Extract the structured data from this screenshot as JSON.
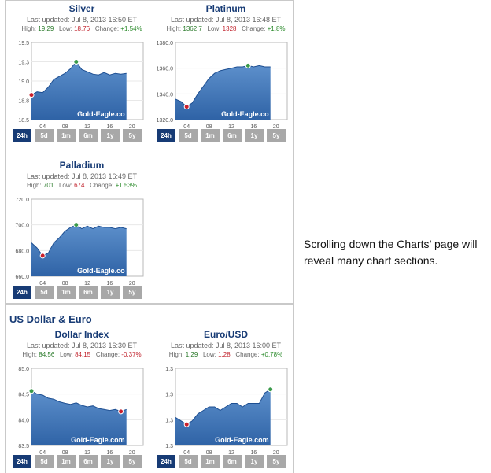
{
  "widgets": [
    {
      "id": "silver",
      "title": "Silver",
      "updated": "Last updated: Jul 8, 2013 16:50 ET",
      "high_label": "High:",
      "high": "19.29",
      "low_label": "Low:",
      "low": "18.76",
      "change_label": "Change:",
      "change": "+1.54%",
      "change_sign": "pos",
      "watermark": "Gold-Eagle.co",
      "y_ticks": [
        "19.5",
        "19.3",
        "19.0",
        "18.8",
        "18.5"
      ],
      "x_ticks": [
        "04",
        "08",
        "12",
        "16",
        "20"
      ],
      "chart_data": {
        "type": "area",
        "x": [
          0,
          1,
          2,
          3,
          4,
          5,
          6,
          7,
          8,
          9,
          10,
          11,
          12,
          13,
          14,
          15,
          16,
          17
        ],
        "y": [
          18.82,
          18.86,
          18.85,
          18.92,
          19.02,
          19.06,
          19.1,
          19.16,
          19.25,
          19.15,
          19.12,
          19.09,
          19.08,
          19.11,
          19.08,
          19.1,
          19.09,
          19.1
        ],
        "ylim": [
          18.5,
          19.5
        ],
        "xlim": [
          0,
          20
        ],
        "high": 19.29,
        "low": 18.76
      }
    },
    {
      "id": "platinum",
      "title": "Platinum",
      "updated": "Last updated: Jul 8, 2013 16:48 ET",
      "high_label": "High:",
      "high": "1362.7",
      "low_label": "Low:",
      "low": "1328",
      "change_label": "Change:",
      "change": "+1.8%",
      "change_sign": "pos",
      "watermark": "Gold-Eagle.co",
      "y_ticks": [
        "1380.0",
        "1360.0",
        "1340.0",
        "1320.0"
      ],
      "x_ticks": [
        "04",
        "08",
        "12",
        "16",
        "20"
      ],
      "chart_data": {
        "type": "area",
        "x": [
          0,
          1,
          2,
          3,
          4,
          5,
          6,
          7,
          8,
          9,
          10,
          11,
          12,
          13,
          14,
          15,
          16,
          17
        ],
        "y": [
          1336,
          1334,
          1330,
          1333,
          1340,
          1346,
          1352,
          1356,
          1358,
          1359,
          1360,
          1361,
          1361,
          1362,
          1361,
          1362,
          1361,
          1361
        ],
        "ylim": [
          1320,
          1380
        ],
        "xlim": [
          0,
          20
        ],
        "high": 1362.7,
        "low": 1328
      }
    },
    {
      "id": "palladium",
      "title": "Palladium",
      "updated": "Last updated: Jul 8, 2013 16:49 ET",
      "high_label": "High:",
      "high": "701",
      "low_label": "Low:",
      "low": "674",
      "change_label": "Change:",
      "change": "+1.53%",
      "change_sign": "pos",
      "watermark": "Gold-Eagle.co",
      "y_ticks": [
        "720.0",
        "700.0",
        "680.0",
        "660.0"
      ],
      "x_ticks": [
        "04",
        "08",
        "12",
        "16",
        "20"
      ],
      "chart_data": {
        "type": "area",
        "x": [
          0,
          1,
          2,
          3,
          4,
          5,
          6,
          7,
          8,
          9,
          10,
          11,
          12,
          13,
          14,
          15,
          16,
          17
        ],
        "y": [
          686,
          682,
          676,
          678,
          686,
          690,
          695,
          698,
          700,
          697,
          699,
          697,
          699,
          698,
          698,
          697,
          698,
          697
        ],
        "ylim": [
          660,
          720
        ],
        "xlim": [
          0,
          20
        ],
        "high": 701,
        "low": 674
      }
    },
    {
      "id": "dollar-index",
      "title": "Dollar Index",
      "updated": "Last updated: Jul 8, 2013 16:30 ET",
      "high_label": "High:",
      "high": "84.56",
      "low_label": "Low:",
      "low": "84.15",
      "change_label": "Change:",
      "change": "-0.37%",
      "change_sign": "neg",
      "watermark": "Gold-Eagle.com",
      "y_ticks": [
        "85.0",
        "84.5",
        "84.0",
        "83.5"
      ],
      "x_ticks": [
        "04",
        "08",
        "12",
        "16",
        "20"
      ],
      "chart_data": {
        "type": "area",
        "x": [
          0,
          1,
          2,
          3,
          4,
          5,
          6,
          7,
          8,
          9,
          10,
          11,
          12,
          13,
          14,
          15,
          16,
          17
        ],
        "y": [
          84.56,
          84.5,
          84.48,
          84.42,
          84.4,
          84.35,
          84.32,
          84.3,
          84.33,
          84.28,
          84.25,
          84.27,
          84.22,
          84.2,
          84.18,
          84.2,
          84.16,
          84.2
        ],
        "ylim": [
          83.5,
          85.0
        ],
        "xlim": [
          0,
          20
        ],
        "high": 84.56,
        "low": 84.15
      }
    },
    {
      "id": "euro-usd",
      "title": "Euro/USD",
      "updated": "Last updated: Jul 8, 2013 16:00 ET",
      "high_label": "High:",
      "high": "1.29",
      "low_label": "Low:",
      "low": "1.28",
      "change_label": "Change:",
      "change": "+0.78%",
      "change_sign": "pos",
      "watermark": "Gold-Eagle.com",
      "y_ticks": [
        "1.3",
        "1.3",
        "1.3",
        "1.3"
      ],
      "x_ticks": [
        "04",
        "08",
        "12",
        "16",
        "20"
      ],
      "chart_data": {
        "type": "area",
        "x": [
          0,
          1,
          2,
          3,
          4,
          5,
          6,
          7,
          8,
          9,
          10,
          11,
          12,
          13,
          14,
          15,
          16,
          17
        ],
        "y": [
          1.283,
          1.282,
          1.281,
          1.282,
          1.284,
          1.285,
          1.286,
          1.286,
          1.285,
          1.286,
          1.287,
          1.287,
          1.286,
          1.287,
          1.287,
          1.287,
          1.29,
          1.291
        ],
        "ylim": [
          1.275,
          1.297
        ],
        "xlim": [
          0,
          20
        ],
        "high": 1.29,
        "low": 1.28
      }
    }
  ],
  "range_buttons": [
    "24h",
    "5d",
    "1m",
    "6m",
    "1y",
    "5y"
  ],
  "active_range": "24h",
  "section": {
    "title": "US Dollar & Euro"
  },
  "note": "Scrolling down the Charts’ page will reveal many chart sections.",
  "colors": {
    "area_top": "#5c8fcb",
    "area_bottom": "#2f63a6",
    "line": "#1e4f92",
    "high_marker": "#3a9a4a",
    "low_marker": "#c9202c",
    "title": "#173b75",
    "button_active": "#173b75",
    "button": "#a8a8a8"
  }
}
